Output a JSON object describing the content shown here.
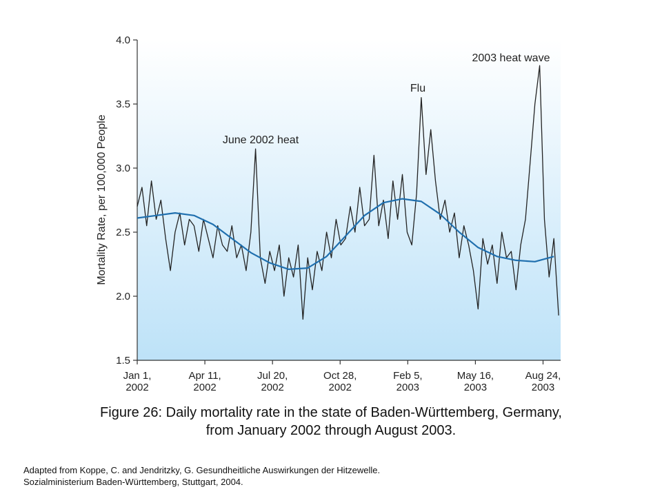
{
  "chart_data": {
    "type": "line",
    "y_label": "Mortality Rate, per 100,000 People",
    "xlim": [
      "2002-01-01",
      "2003-09-19"
    ],
    "xticks": [
      {
        "value": "2002-01-01",
        "label": "Jan 1, 2002"
      },
      {
        "value": "2002-04-11",
        "label": "Apr 11, 2002"
      },
      {
        "value": "2002-07-20",
        "label": "Jul 20, 2002"
      },
      {
        "value": "2002-10-28",
        "label": "Oct 28, 2002"
      },
      {
        "value": "2003-02-05",
        "label": "Feb 5, 2003"
      },
      {
        "value": "2003-05-16",
        "label": "May 16, 2003"
      },
      {
        "value": "2003-08-24",
        "label": "Aug 24, 2003"
      }
    ],
    "ylim": [
      1.5,
      4.0
    ],
    "yticks": [
      {
        "value": 1.5,
        "label": "1.5"
      },
      {
        "value": 2.0,
        "label": "2.0"
      },
      {
        "value": 2.5,
        "label": "2.5"
      },
      {
        "value": 3.0,
        "label": "3.0"
      },
      {
        "value": 3.5,
        "label": "3.5"
      },
      {
        "value": 4.0,
        "label": "4.0"
      }
    ],
    "annotations": [
      "June 2002 heat",
      "Flu",
      "2003 heat wave"
    ],
    "series": [
      {
        "color": "#222222",
        "x": [
          "2002-01-01",
          "2002-01-08",
          "2002-01-15",
          "2002-01-22",
          "2002-01-29",
          "2002-02-05",
          "2002-02-12",
          "2002-02-19",
          "2002-02-26",
          "2002-03-05",
          "2002-03-12",
          "2002-03-19",
          "2002-03-26",
          "2002-04-02",
          "2002-04-09",
          "2002-04-16",
          "2002-04-23",
          "2002-04-30",
          "2002-05-07",
          "2002-05-14",
          "2002-05-21",
          "2002-05-28",
          "2002-06-04",
          "2002-06-11",
          "2002-06-18",
          "2002-06-25",
          "2002-07-02",
          "2002-07-09",
          "2002-07-16",
          "2002-07-23",
          "2002-07-30",
          "2002-08-06",
          "2002-08-13",
          "2002-08-20",
          "2002-08-27",
          "2002-09-03",
          "2002-09-10",
          "2002-09-17",
          "2002-09-24",
          "2002-10-01",
          "2002-10-08",
          "2002-10-15",
          "2002-10-22",
          "2002-10-29",
          "2002-11-05",
          "2002-11-12",
          "2002-11-19",
          "2002-11-26",
          "2002-12-03",
          "2002-12-10",
          "2002-12-17",
          "2002-12-24",
          "2002-12-31",
          "2003-01-07",
          "2003-01-14",
          "2003-01-21",
          "2003-01-28",
          "2003-02-04",
          "2003-02-11",
          "2003-02-18",
          "2003-02-25",
          "2003-03-04",
          "2003-03-11",
          "2003-03-18",
          "2003-03-25",
          "2003-04-01",
          "2003-04-08",
          "2003-04-15",
          "2003-04-22",
          "2003-04-29",
          "2003-05-06",
          "2003-05-13",
          "2003-05-20",
          "2003-05-27",
          "2003-06-03",
          "2003-06-10",
          "2003-06-17",
          "2003-06-24",
          "2003-07-01",
          "2003-07-08",
          "2003-07-15",
          "2003-07-22",
          "2003-07-29",
          "2003-08-05",
          "2003-08-12",
          "2003-08-19",
          "2003-08-26",
          "2003-09-02",
          "2003-09-09",
          "2003-09-16"
        ],
        "values": [
          2.7,
          2.85,
          2.55,
          2.9,
          2.6,
          2.75,
          2.45,
          2.2,
          2.5,
          2.65,
          2.4,
          2.6,
          2.55,
          2.35,
          2.6,
          2.45,
          2.3,
          2.55,
          2.4,
          2.35,
          2.55,
          2.3,
          2.4,
          2.2,
          2.5,
          3.15,
          2.3,
          2.1,
          2.35,
          2.2,
          2.4,
          2.0,
          2.3,
          2.15,
          2.4,
          1.82,
          2.3,
          2.05,
          2.35,
          2.2,
          2.5,
          2.3,
          2.6,
          2.4,
          2.45,
          2.7,
          2.5,
          2.85,
          2.55,
          2.6,
          3.1,
          2.55,
          2.75,
          2.45,
          2.9,
          2.6,
          2.95,
          2.5,
          2.4,
          2.8,
          3.55,
          2.95,
          3.3,
          2.9,
          2.6,
          2.75,
          2.5,
          2.65,
          2.3,
          2.55,
          2.4,
          2.2,
          1.9,
          2.45,
          2.25,
          2.4,
          2.1,
          2.5,
          2.3,
          2.35,
          2.05,
          2.4,
          2.6,
          3.05,
          3.5,
          3.8,
          2.6,
          2.15,
          2.45,
          1.85
        ]
      },
      {
        "color": "#1f6fae",
        "x": [
          "2002-01-01",
          "2002-01-29",
          "2002-02-26",
          "2002-03-26",
          "2002-04-23",
          "2002-05-21",
          "2002-06-18",
          "2002-07-16",
          "2002-08-13",
          "2002-09-10",
          "2002-10-08",
          "2002-11-05",
          "2002-12-03",
          "2002-12-31",
          "2003-01-28",
          "2003-02-25",
          "2003-03-25",
          "2003-04-22",
          "2003-05-20",
          "2003-06-17",
          "2003-07-15",
          "2003-08-12",
          "2003-09-09"
        ],
        "values": [
          2.61,
          2.63,
          2.65,
          2.63,
          2.56,
          2.45,
          2.34,
          2.26,
          2.21,
          2.22,
          2.31,
          2.47,
          2.63,
          2.73,
          2.76,
          2.74,
          2.64,
          2.5,
          2.38,
          2.31,
          2.28,
          2.27,
          2.31
        ]
      }
    ]
  },
  "caption": "Figure 26: Daily mortality rate in the state of Baden-Württemberg, Germany, from January 2002 through August 2003.",
  "source": "Adapted from Koppe, C. and Jendritzky, G. Gesundheitliche Auswirkungen der Hitzewelle. Sozialministerium Baden-Württemberg, Stuttgart, 2004."
}
